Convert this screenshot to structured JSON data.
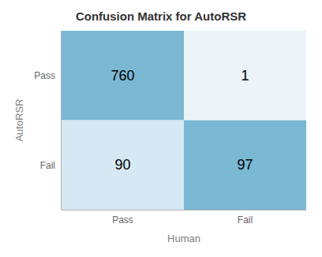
{
  "chart_data": {
    "type": "heatmap",
    "title": "Confusion Matrix for AutoRSR",
    "x_label": "Human",
    "y_label": "AutoRSR",
    "categories": [
      "Pass",
      "Fail"
    ],
    "y_categories": [
      "Pass",
      "Fail"
    ],
    "matrix": [
      [
        760,
        1
      ],
      [
        90,
        97
      ]
    ],
    "colors": [
      [
        "#7ab8d4",
        "#edf4f9"
      ],
      [
        "#d5e8f3",
        "#7ab8d4"
      ]
    ],
    "data_labels": true,
    "grid": false
  }
}
